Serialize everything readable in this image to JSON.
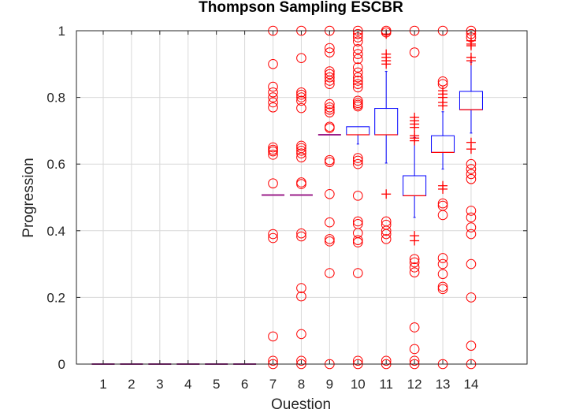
{
  "chart_data": {
    "type": "box",
    "title": "Thompson Sampling ESCBR",
    "xlabel": "Question",
    "ylabel": "Progression",
    "ylim": [
      0,
      1
    ],
    "yticks": [
      0,
      0.2,
      0.4,
      0.6,
      0.8,
      1
    ],
    "ytick_labels": [
      "0",
      "0.2",
      "0.4",
      "0.6",
      "0.8",
      "1"
    ],
    "categories": [
      "1",
      "2",
      "3",
      "4",
      "5",
      "6",
      "7",
      "8",
      "9",
      "10",
      "11",
      "12",
      "13",
      "14"
    ],
    "grid": true,
    "colors": {
      "box": "#0000ff",
      "median": "#ff0000",
      "outlier": "#ff0000",
      "grid": "#d9d9d9",
      "axis": "#262626"
    },
    "boxes": [
      {
        "q": "1",
        "median": 0,
        "q1": 0,
        "q3": 0,
        "whisker_low": 0,
        "whisker_high": 0,
        "outliers_circle": [],
        "outliers_plus": []
      },
      {
        "q": "2",
        "median": 0,
        "q1": 0,
        "q3": 0,
        "whisker_low": 0,
        "whisker_high": 0,
        "outliers_circle": [],
        "outliers_plus": []
      },
      {
        "q": "3",
        "median": 0,
        "q1": 0,
        "q3": 0,
        "whisker_low": 0,
        "whisker_high": 0,
        "outliers_circle": [],
        "outliers_plus": []
      },
      {
        "q": "4",
        "median": 0,
        "q1": 0,
        "q3": 0,
        "whisker_low": 0,
        "whisker_high": 0,
        "outliers_circle": [],
        "outliers_plus": []
      },
      {
        "q": "5",
        "median": 0,
        "q1": 0,
        "q3": 0,
        "whisker_low": 0,
        "whisker_high": 0,
        "outliers_circle": [],
        "outliers_plus": []
      },
      {
        "q": "6",
        "median": 0,
        "q1": 0,
        "q3": 0,
        "whisker_low": 0,
        "whisker_high": 0,
        "outliers_circle": [],
        "outliers_plus": []
      },
      {
        "q": "7",
        "median": 0.507,
        "q1": 0.507,
        "q3": 0.507,
        "whisker_low": 0.507,
        "whisker_high": 0.507,
        "outliers_circle": [
          1.0,
          0.9,
          0.832,
          0.815,
          0.8,
          0.785,
          0.77,
          0.65,
          0.643,
          0.638,
          0.628,
          0.542,
          0.39,
          0.378,
          0.083,
          0.01,
          0.0
        ],
        "outliers_plus": []
      },
      {
        "q": "8",
        "median": 0.507,
        "q1": 0.507,
        "q3": 0.507,
        "whisker_low": 0.507,
        "whisker_high": 0.507,
        "outliers_circle": [
          1.0,
          0.918,
          0.815,
          0.808,
          0.8,
          0.79,
          0.768,
          0.655,
          0.648,
          0.64,
          0.632,
          0.62,
          0.545,
          0.54,
          0.392,
          0.383,
          0.228,
          0.203,
          0.09,
          0.01,
          0.0
        ],
        "outliers_plus": []
      },
      {
        "q": "9",
        "median": 0.688,
        "q1": 0.688,
        "q3": 0.688,
        "whisker_low": 0.688,
        "whisker_high": 0.688,
        "outliers_circle": [
          1.0,
          0.948,
          0.935,
          0.878,
          0.87,
          0.86,
          0.85,
          0.84,
          0.78,
          0.77,
          0.763,
          0.755,
          0.712,
          0.708,
          0.612,
          0.606,
          0.51,
          0.425,
          0.375,
          0.368,
          0.273,
          0.0
        ],
        "outliers_plus": []
      },
      {
        "q": "10",
        "median": 0.688,
        "q1": 0.688,
        "q3": 0.712,
        "whisker_low": 0.66,
        "whisker_high": 0.712,
        "outliers_circle": [
          1.0,
          0.99,
          0.98,
          0.968,
          0.945,
          0.93,
          0.915,
          0.89,
          0.875,
          0.86,
          0.85,
          0.84,
          0.83,
          0.79,
          0.783,
          0.778,
          0.773,
          0.618,
          0.61,
          0.6,
          0.505,
          0.428,
          0.42,
          0.393,
          0.372,
          0.365,
          0.273,
          0.01,
          0.0
        ],
        "outliers_plus": []
      },
      {
        "q": "11",
        "median": 0.688,
        "q1": 0.688,
        "q3": 0.767,
        "whisker_low": 0.603,
        "whisker_high": 0.878,
        "outliers_circle": [
          1.0,
          0.995,
          0.428,
          0.418,
          0.4,
          0.39,
          0.375,
          0.01,
          0.0
        ],
        "outliers_plus": [
          0.99,
          0.93,
          0.92,
          0.91,
          0.9,
          0.51
        ]
      },
      {
        "q": "12",
        "median": 0.505,
        "q1": 0.505,
        "q3": 0.565,
        "whisker_low": 0.44,
        "whisker_high": 0.68,
        "outliers_circle": [
          1.0,
          0.935,
          0.315,
          0.305,
          0.29,
          0.275,
          0.11,
          0.045,
          0.01,
          0.0
        ],
        "outliers_plus": [
          0.74,
          0.73,
          0.72,
          0.71,
          0.685,
          0.678,
          0.67,
          0.385,
          0.37
        ]
      },
      {
        "q": "13",
        "median": 0.635,
        "q1": 0.635,
        "q3": 0.685,
        "whisker_low": 0.585,
        "whisker_high": 0.757,
        "outliers_circle": [
          1.0,
          0.848,
          0.84,
          0.482,
          0.475,
          0.447,
          0.318,
          0.3,
          0.27,
          0.232,
          0.225,
          0.0
        ],
        "outliers_plus": [
          0.82,
          0.81,
          0.8,
          0.785,
          0.775,
          0.535,
          0.525
        ]
      },
      {
        "q": "14",
        "median": 0.763,
        "q1": 0.763,
        "q3": 0.818,
        "whisker_low": 0.693,
        "whisker_high": 0.905,
        "outliers_circle": [
          1.0,
          0.99,
          0.98,
          0.6,
          0.585,
          0.57,
          0.555,
          0.46,
          0.44,
          0.41,
          0.39,
          0.3,
          0.2,
          0.055,
          0.0
        ],
        "outliers_plus": [
          0.97,
          0.96,
          0.955,
          0.92,
          0.91,
          0.665,
          0.645
        ]
      }
    ]
  }
}
